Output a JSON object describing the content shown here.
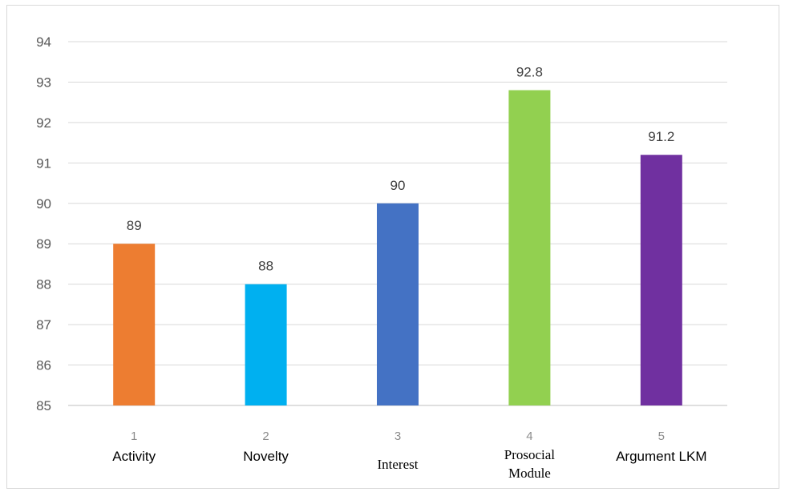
{
  "chart_data": {
    "type": "bar",
    "title": "",
    "xlabel": "",
    "ylabel": "",
    "ylim": [
      85,
      94
    ],
    "yticks": [
      85,
      86,
      87,
      88,
      89,
      90,
      91,
      92,
      93,
      94
    ],
    "grid": true,
    "legend": "none",
    "categories": [
      "1",
      "2",
      "3",
      "4",
      "5"
    ],
    "category_names": [
      [
        "Activity"
      ],
      [
        "Novelty"
      ],
      [
        "Interest"
      ],
      [
        "Prosocial",
        "Module"
      ],
      [
        "Argument LKM"
      ]
    ],
    "values": [
      89,
      88,
      90,
      92.8,
      91.2
    ],
    "data_labels": [
      "89",
      "88",
      "90",
      "92.8",
      "91.2"
    ],
    "colors": [
      "#ed7d31",
      "#00b0f0",
      "#4472c4",
      "#92d050",
      "#7030a0"
    ]
  }
}
